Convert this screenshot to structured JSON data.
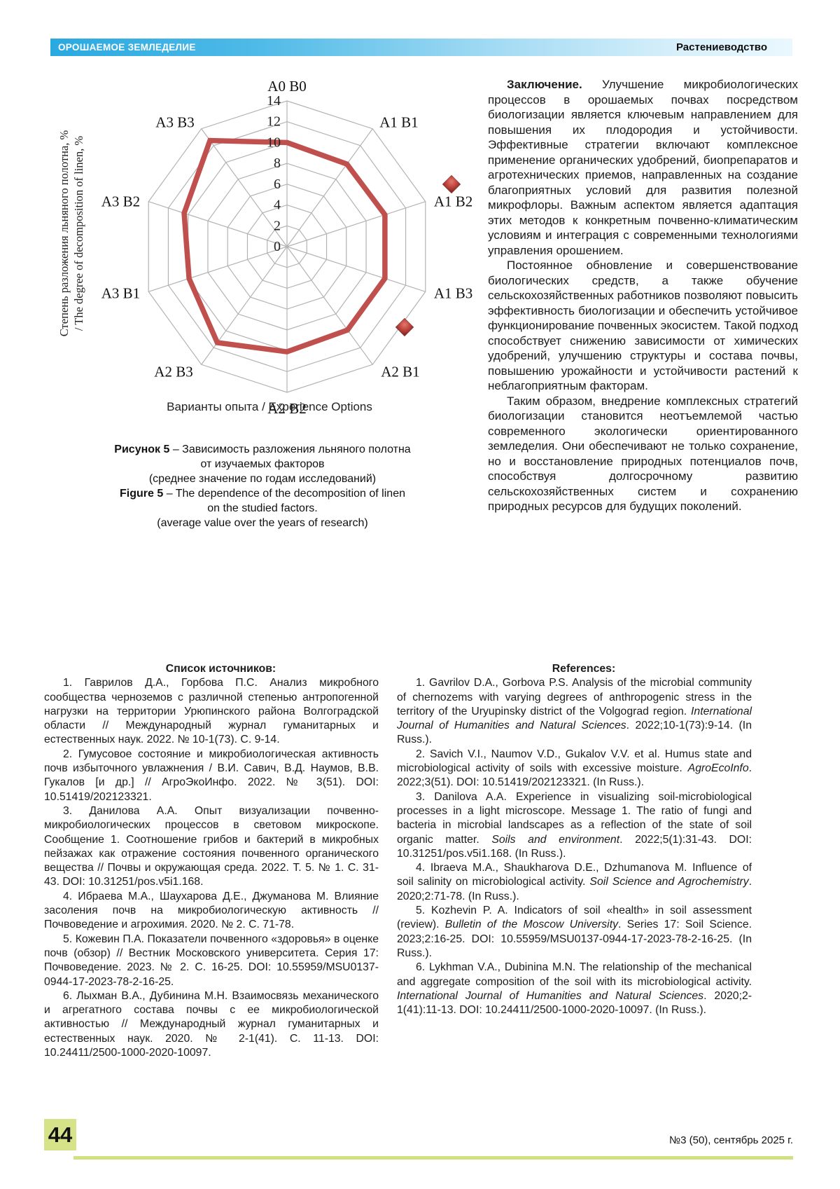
{
  "header": {
    "left": "ОРОШАЕМОЕ ЗЕМЛЕДЕЛИЕ",
    "right": "Растениеводство"
  },
  "chart_data": {
    "type": "radar",
    "categories": [
      "A0 B0",
      "A1 B1",
      "A1 B2",
      "A1 B3",
      "A2 B1",
      "A2 B2",
      "A2 B3",
      "A3 B1",
      "A3 B2",
      "A3 B3"
    ],
    "series": [
      {
        "name": "Степень разложения льняного полотна, %",
        "values": [
          10.0,
          9.8,
          9.9,
          9.9,
          9.9,
          10.1,
          11.4,
          9.9,
          10.4,
          12.6
        ]
      }
    ],
    "r_axis": {
      "min": 0,
      "max": 14,
      "step": 2,
      "tick_labels": [
        "0",
        "2",
        "4",
        "6",
        "8",
        "10",
        "12",
        "14"
      ]
    },
    "ylabel_line1": "Степень разложения льняного полотна, %",
    "ylabel_line2": "/ The degree of decomposition of linen, %",
    "xlabel": "Варианты опыта / Experience Options",
    "line_color": "#c0504d",
    "grid_color": "#b3b3b3",
    "marker_shape": "diamond",
    "grid": "on",
    "legend": "none"
  },
  "caption": {
    "ru_bold": "Рисунок 5",
    "ru_rest": " – Зависимость разложения льняного полотна",
    "ru_line2": "от изучаемых факторов",
    "ru_line3": "(среднее значение по годам исследований)",
    "en_bold": "Figure 5",
    "en_rest": " – The dependence of the decomposition of linen",
    "en_line2": "on the studied factors.",
    "en_line3": "(average value over the years of research)"
  },
  "conclusion": {
    "lead": "Заключение.",
    "p1": "Улучшение микробиологических процессов в орошаемых почвах посредством биологизации является ключевым направлением для повышения их плодородия и устойчивости. Эффективные стратегии включают комплексное применение органических удобрений, биопрепаратов и агротехнических приемов, направленных на создание благоприятных условий для развития полезной микрофлоры. Важным аспектом является адаптация этих методов к конкретным почвенно-климатическим условиям и интеграция с современными технологиями управления орошением.",
    "p2": "Постоянное обновление и совершенствование биологических средств, а также обучение сельскохозяйственных работников позволяют повысить эффективность биологизации и обеспечить устойчивое функционирование почвенных экосистем. Такой подход способствует снижению зависимости от химических удобрений, улучшению структуры и состава почвы, повышению урожайности и устойчивости растений к неблагоприятным факторам.",
    "p3": "Таким образом, внедрение комплексных стратегий биологизации становится неотъемлемой частью современного экологически ориентированного земледелия. Они обеспечивают не только сохранение, но и восстановление природных потенциалов почв, способствуя долгосрочному развитию сельскохозяйственных систем и сохранению природных ресурсов для будущих поколений."
  },
  "sources": {
    "title": "Список источников:",
    "items": [
      "1. Гаврилов Д.А., Горбова П.С. Анализ микробного сообщества черноземов с различной степенью антропогенной нагрузки на территории Урюпинского района Волгоградской области // Международный журнал гуманитарных и естественных наук. 2022. № 10-1(73). С. 9-14.",
      "2. Гумусовое состояние и микробиологическая активность почв избыточного увлажнения / В.И. Савич, В.Д. Наумов, В.В. Гукалов [и др.] // АгроЭкоИнфо. 2022. № 3(51). DOI: 10.51419/202123321.",
      "3. Данилова А.А. Опыт визуализации почвенно-микробиологических процессов в световом микроскопе. Сообщение 1. Соотношение грибов и бактерий в микробных пейзажах как отражение состояния почвенного органического вещества // Почвы и окружающая среда. 2022. Т. 5. № 1. С. 31-43. DOI: 10.31251/pos.v5i1.168.",
      "4. Ибраева М.А., Шаухарова Д.Е., Джуманова М. Влияние засоления почв на микробиологическую активность // Почвоведение и агрохимия. 2020. № 2. С. 71-78.",
      "5. Кожевин П.А. Показатели почвенного «здоровья» в оценке почв (обзор) // Вестник Московского университета. Серия 17: Почвоведение. 2023. № 2. С. 16-25. DOI: 10.55959/MSU0137-0944-17-2023-78-2-16-25.",
      "6. Лыхман В.А., Дубинина М.Н. Взаимосвязь механического и агрегатного состава почвы с ее микробиологической активностью // Международный журнал гуманитарных и естественных наук. 2020. № 2-1(41). С. 11-13. DOI: 10.24411/2500-1000-2020-10097."
    ]
  },
  "references": {
    "title": "References:",
    "items": [
      "1. Gavrilov D.A., Gorbova P.S. Analysis of the microbial community of chernozems with varying degrees of anthropogenic stress in the territory of the Uryupinsky district of the Volgograd region. *International Journal of Humanities and Natural Sciences*. 2022;10-1(73):9-14. (In Russ.).",
      "2. Savich V.I., Naumov V.D., Gukalov V.V. et al. Humus state and microbiological activity of soils with excessive moisture. *AgroEcoInfo*. 2022;3(51). DOI: 10.51419/202123321. (In Russ.).",
      "3. Danilova A.A. Experience in visualizing soil-microbiological processes in a light microscope. Message 1. The ratio of fungi and bacteria in microbial landscapes as a reflection of the state of soil organic matter. *Soils and environment*. 2022;5(1):31-43. DOI: 10.31251/pos.v5i1.168. (In Russ.).",
      "4. Ibraeva M.A., Shaukharova D.E., Dzhumanova M. Influence of soil salinity on microbiological activity. *Soil Science and Agrochemistry*. 2020;2:71-78. (In Russ.).",
      "5. Kozhevin P. A. Indicators of soil «health» in soil assessment (review). *Bulletin of the Moscow University*. Series 17: Soil Science. 2023;2:16-25. DOI: 10.55959/MSU0137-0944-17-2023-78-2-16-25. (In Russ.).",
      "6. Lykhman V.A., Dubinina M.N. The relationship of the mechanical and aggregate composition of the soil with its microbiological activity. *International Journal of Humanities and Natural Sciences*. 2020;2-1(41):11-13. DOI: 10.24411/2500-1000-2020-10097. (In Russ.)."
    ]
  },
  "footer": {
    "page": "44",
    "issue": "№3 (50), сентябрь 2025 г."
  }
}
